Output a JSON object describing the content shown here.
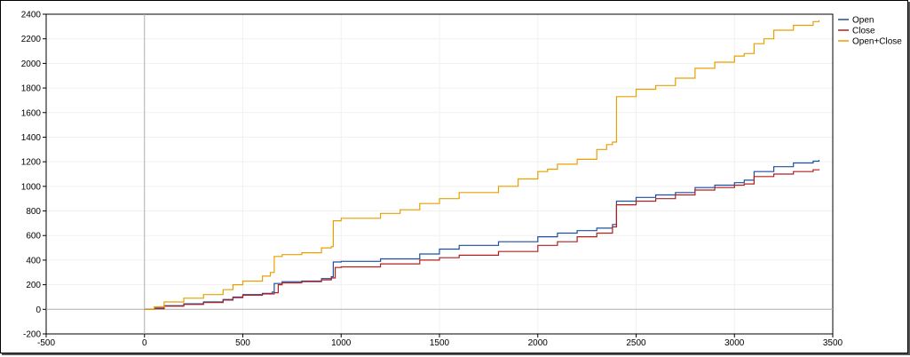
{
  "chart_data": {
    "type": "line",
    "title": "",
    "xlabel": "",
    "ylabel": "",
    "xlim": [
      -500,
      3500
    ],
    "ylim": [
      -200,
      2400
    ],
    "x_ticks": [
      -500,
      0,
      500,
      1000,
      1500,
      2000,
      2500,
      3000,
      3500
    ],
    "y_ticks": [
      -200,
      0,
      200,
      400,
      600,
      800,
      1000,
      1200,
      1400,
      1600,
      1800,
      2000,
      2200,
      2400
    ],
    "grid": true,
    "legend_position": "top-right",
    "series": [
      {
        "name": "Open",
        "color": "#1f4fa0",
        "x": [
          0,
          50,
          100,
          200,
          300,
          400,
          450,
          500,
          600,
          650,
          660,
          700,
          800,
          900,
          950,
          960,
          1000,
          1200,
          1400,
          1500,
          1600,
          1800,
          2000,
          2100,
          2200,
          2300,
          2380,
          2400,
          2500,
          2600,
          2700,
          2800,
          2900,
          3000,
          3050,
          3100,
          3200,
          3300,
          3400,
          3430
        ],
        "y": [
          0,
          10,
          30,
          45,
          60,
          80,
          100,
          120,
          130,
          140,
          210,
          225,
          230,
          250,
          265,
          385,
          390,
          410,
          450,
          490,
          520,
          550,
          590,
          620,
          640,
          660,
          690,
          880,
          910,
          930,
          950,
          990,
          1010,
          1030,
          1050,
          1120,
          1160,
          1190,
          1205,
          1215
        ]
      },
      {
        "name": "Close",
        "color": "#b02020",
        "x": [
          0,
          50,
          100,
          200,
          300,
          400,
          450,
          500,
          600,
          660,
          680,
          700,
          800,
          900,
          950,
          970,
          1000,
          1200,
          1400,
          1500,
          1600,
          1800,
          2000,
          2100,
          2200,
          2300,
          2380,
          2400,
          2500,
          2600,
          2700,
          2800,
          2900,
          3000,
          3050,
          3100,
          3200,
          3300,
          3400,
          3430
        ],
        "y": [
          0,
          5,
          25,
          40,
          55,
          75,
          95,
          115,
          125,
          135,
          200,
          215,
          225,
          240,
          255,
          340,
          345,
          370,
          400,
          420,
          440,
          470,
          520,
          550,
          590,
          620,
          670,
          850,
          880,
          900,
          930,
          970,
          990,
          1010,
          1020,
          1080,
          1100,
          1120,
          1135,
          1140
        ]
      },
      {
        "name": "Open+Close",
        "color": "#e8a000",
        "x": [
          0,
          50,
          100,
          200,
          300,
          400,
          450,
          500,
          600,
          640,
          660,
          700,
          800,
          900,
          950,
          960,
          1000,
          1200,
          1300,
          1400,
          1500,
          1600,
          1800,
          1900,
          2000,
          2050,
          2100,
          2200,
          2300,
          2350,
          2380,
          2400,
          2500,
          2600,
          2700,
          2800,
          2900,
          3000,
          3050,
          3100,
          3150,
          3200,
          3300,
          3400,
          3430
        ],
        "y": [
          0,
          20,
          60,
          90,
          120,
          160,
          200,
          230,
          270,
          300,
          430,
          445,
          460,
          500,
          510,
          720,
          740,
          780,
          810,
          860,
          900,
          950,
          1000,
          1060,
          1120,
          1140,
          1180,
          1220,
          1300,
          1340,
          1360,
          1730,
          1790,
          1820,
          1880,
          1960,
          2010,
          2060,
          2080,
          2160,
          2200,
          2270,
          2310,
          2340,
          2350
        ]
      }
    ]
  }
}
